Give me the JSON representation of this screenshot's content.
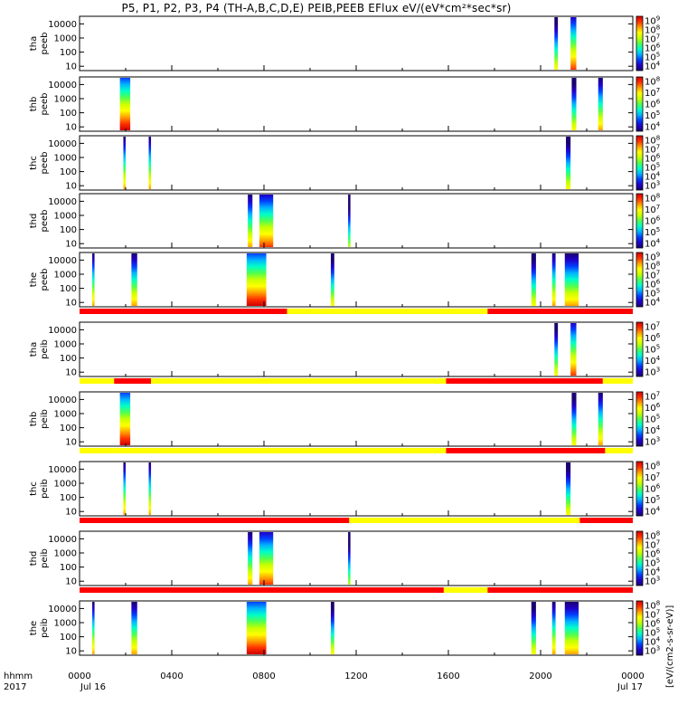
{
  "title": "P5, P1, P2, P3, P4 (TH-A,B,C,D,E) PEIB,PEEB EFlux eV/(eV*cm²*sec*sr)",
  "footer": {
    "hhmm": "hhmm",
    "year": "2017",
    "date_start": "Jul 16",
    "date_end": "Jul 17"
  },
  "time_ticks": [
    "0000",
    "0400",
    "0800",
    "1200",
    "1600",
    "2000",
    "0000"
  ],
  "colorbar_label_right": "[eV/(cm2-s-sr-eV)]",
  "colors": {
    "rainbow": [
      "#1a0070",
      "#2000c8",
      "#0040ff",
      "#00b4ff",
      "#00ffc8",
      "#50ff50",
      "#c8ff00",
      "#ffff00",
      "#ffa000",
      "#ff3000",
      "#d00000"
    ],
    "mode_fast": "#ff0000",
    "mode_slow": "#ffff00"
  },
  "chart_data": {
    "type": "heatmap",
    "x_range_hours": [
      0,
      24
    ],
    "y_scale": "log",
    "y_ticks": [
      "10000",
      "1000",
      "100",
      "10"
    ],
    "panels": [
      {
        "name": "tha peeb",
        "cbar_exps": [
          "9",
          "8",
          "7",
          "6",
          "5",
          "4"
        ],
        "bursts": [
          [
            20.6,
            20.75,
            0.2
          ],
          [
            21.3,
            21.55,
            0.85
          ]
        ]
      },
      {
        "name": "thb peeb",
        "cbar_exps": [
          "8",
          "7",
          "6",
          "5",
          "4"
        ],
        "bursts": [
          [
            1.75,
            2.2,
            0.9
          ],
          [
            21.35,
            21.55,
            0.3
          ],
          [
            22.5,
            22.7,
            0.6
          ]
        ]
      },
      {
        "name": "thc peeb",
        "cbar_exps": [
          "8",
          "7",
          "6",
          "5",
          "4",
          "3"
        ],
        "bursts": [
          [
            1.9,
            2.0,
            0.5
          ],
          [
            3.0,
            3.1,
            0.4
          ],
          [
            21.1,
            21.3,
            0.3
          ]
        ]
      },
      {
        "name": "thd peeb",
        "cbar_exps": [
          "8",
          "7",
          "6",
          "5",
          "4"
        ],
        "bursts": [
          [
            7.3,
            7.5,
            0.5
          ],
          [
            7.8,
            8.4,
            0.7
          ],
          [
            11.65,
            11.75,
            0.1
          ]
        ]
      },
      {
        "name": "the peeb",
        "cbar_exps": [
          "9",
          "8",
          "7",
          "6",
          "5",
          "4"
        ],
        "bursts": [
          [
            0.55,
            0.65,
            0.4
          ],
          [
            2.25,
            2.5,
            0.5
          ],
          [
            7.25,
            8.1,
            0.9
          ],
          [
            10.9,
            11.05,
            0.3
          ],
          [
            19.6,
            19.8,
            0.3
          ],
          [
            20.5,
            20.65,
            0.4
          ],
          [
            21.05,
            21.65,
            0.6
          ]
        ]
      },
      {
        "name": "tha peib",
        "cbar_exps": [
          "7",
          "6",
          "5",
          "4",
          "3"
        ],
        "bursts": [
          [
            20.6,
            20.75,
            0.2
          ],
          [
            21.3,
            21.55,
            0.85
          ]
        ]
      },
      {
        "name": "thb peib",
        "cbar_exps": [
          "7",
          "6",
          "5",
          "4",
          "3"
        ],
        "bursts": [
          [
            1.75,
            2.2,
            0.9
          ],
          [
            21.35,
            21.55,
            0.3
          ],
          [
            22.5,
            22.7,
            0.6
          ]
        ]
      },
      {
        "name": "thc peib",
        "cbar_exps": [
          "8",
          "7",
          "6",
          "5",
          "4"
        ],
        "bursts": [
          [
            1.9,
            2.0,
            0.5
          ],
          [
            3.0,
            3.1,
            0.4
          ],
          [
            21.1,
            21.3,
            0.3
          ]
        ]
      },
      {
        "name": "thd peib",
        "cbar_exps": [
          "8",
          "7",
          "6",
          "5",
          "4",
          "3"
        ],
        "bursts": [
          [
            7.3,
            7.5,
            0.5
          ],
          [
            7.8,
            8.4,
            0.7
          ],
          [
            11.65,
            11.75,
            0.1
          ]
        ]
      },
      {
        "name": "the peib",
        "cbar_exps": [
          "8",
          "7",
          "6",
          "5",
          "4",
          "3"
        ],
        "bursts": [
          [
            0.55,
            0.65,
            0.4
          ],
          [
            2.25,
            2.5,
            0.5
          ],
          [
            7.25,
            8.1,
            0.9
          ],
          [
            10.9,
            11.05,
            0.3
          ],
          [
            19.6,
            19.8,
            0.3
          ],
          [
            20.5,
            20.65,
            0.4
          ],
          [
            21.05,
            21.65,
            0.6
          ]
        ]
      }
    ],
    "mode_bars": [
      {
        "after_panel": 4,
        "segments": [
          [
            0,
            9.0,
            "fast"
          ],
          [
            9.0,
            17.7,
            "slow"
          ],
          [
            17.7,
            24,
            "fast"
          ]
        ]
      },
      {
        "after_panel": 5,
        "segments": [
          [
            0,
            1.5,
            "slow"
          ],
          [
            1.5,
            3.1,
            "fast"
          ],
          [
            3.1,
            15.9,
            "slow"
          ],
          [
            15.9,
            22.7,
            "fast"
          ],
          [
            22.7,
            24,
            "slow"
          ]
        ]
      },
      {
        "after_panel": 6,
        "segments": [
          [
            0,
            1.5,
            "slow"
          ],
          [
            1.5,
            15.9,
            "slow"
          ],
          [
            15.9,
            22.8,
            "fast"
          ],
          [
            22.8,
            24,
            "slow"
          ]
        ]
      },
      {
        "after_panel": 7,
        "segments": [
          [
            0,
            11.7,
            "fast"
          ],
          [
            11.7,
            21.7,
            "slow"
          ],
          [
            21.7,
            24,
            "fast"
          ]
        ]
      },
      {
        "after_panel": 8,
        "segments": [
          [
            0,
            15.8,
            "fast"
          ],
          [
            15.8,
            17.7,
            "slow"
          ],
          [
            17.7,
            24,
            "fast"
          ]
        ]
      }
    ]
  }
}
